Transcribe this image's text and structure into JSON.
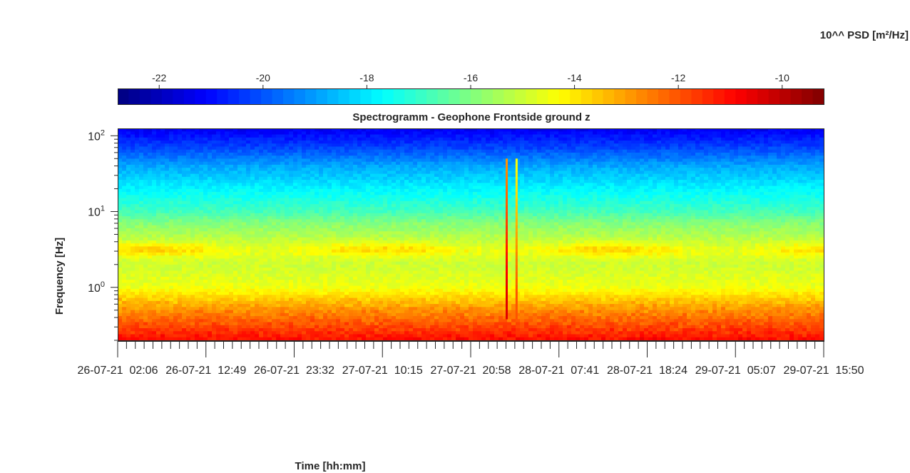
{
  "chart_data": {
    "type": "heatmap",
    "title": "Spectrogramm - Geophone Frontside ground z",
    "xlabel": "Time [hh:mm]",
    "ylabel": "Frequency [Hz]",
    "x_tick_labels": [
      "26-07-21  02:06",
      "26-07-21  12:49",
      "26-07-21  23:32",
      "27-07-21  10:15",
      "27-07-21  20:58",
      "28-07-21  07:41",
      "28-07-21  18:24",
      "29-07-21  05:07",
      "29-07-21  15:50"
    ],
    "y_scale": "log",
    "ylim": [
      0.2,
      125
    ],
    "y_ticks": [
      {
        "base": "10",
        "exp": "0"
      },
      {
        "base": "10",
        "exp": "1"
      },
      {
        "base": "10",
        "exp": "2"
      }
    ],
    "colorbar": {
      "label": "10^^ PSD [m²/Hz]",
      "location": "top",
      "colormap": "jet",
      "range": [
        -22.8,
        -9.2
      ],
      "ticks": [
        "-22",
        "-20",
        "-18",
        "-16",
        "-14",
        "-12",
        "-10"
      ]
    },
    "spectral_profile": {
      "description_values_log10_psd_by_frequency": true,
      "freq_hz": [
        0.2,
        0.3,
        0.5,
        0.7,
        1.0,
        2.0,
        3.0,
        5.0,
        7.0,
        10.0,
        20.0,
        40.0,
        70.0,
        125.0
      ],
      "log10_psd": [
        -11.0,
        -11.8,
        -12.8,
        -13.6,
        -14.5,
        -15.0,
        -14.6,
        -15.4,
        -15.9,
        -16.8,
        -17.8,
        -18.9,
        -20.2,
        -21.3
      ]
    },
    "transient_events": [
      {
        "time_fraction": 0.551,
        "log10_psd_peak": -10.5
      },
      {
        "time_fraction": 0.565,
        "log10_psd_peak": -12.0
      }
    ],
    "grid": false
  }
}
